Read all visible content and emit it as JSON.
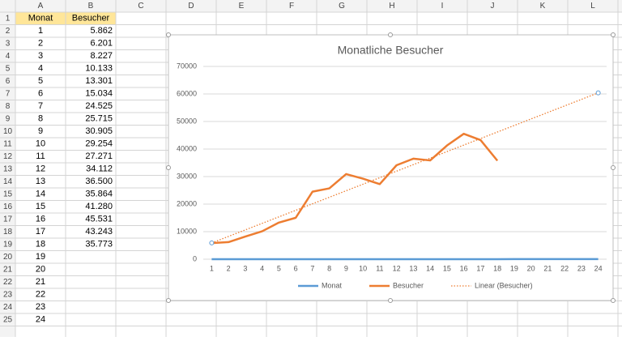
{
  "sheet": {
    "column_headers": [
      "A",
      "B",
      "C",
      "D",
      "E",
      "F",
      "G",
      "H",
      "I",
      "J",
      "K",
      "L"
    ],
    "row_headers": [
      1,
      2,
      3,
      4,
      5,
      6,
      7,
      8,
      9,
      10,
      11,
      12,
      13,
      14,
      15,
      16,
      17,
      18,
      19,
      20,
      21,
      22,
      23,
      24,
      25
    ],
    "rows": [
      [
        "Monat",
        "Besucher"
      ],
      [
        1,
        "5.862"
      ],
      [
        2,
        "6.201"
      ],
      [
        3,
        "8.227"
      ],
      [
        4,
        "10.133"
      ],
      [
        5,
        "13.301"
      ],
      [
        6,
        "15.034"
      ],
      [
        7,
        "24.525"
      ],
      [
        8,
        "25.715"
      ],
      [
        9,
        "30.905"
      ],
      [
        10,
        "29.254"
      ],
      [
        11,
        "27.271"
      ],
      [
        12,
        "34.112"
      ],
      [
        13,
        "36.500"
      ],
      [
        14,
        "35.864"
      ],
      [
        15,
        "41.280"
      ],
      [
        16,
        "45.531"
      ],
      [
        17,
        "43.243"
      ],
      [
        18,
        "35.773"
      ],
      [
        19
      ],
      [
        20
      ],
      [
        21
      ],
      [
        22
      ],
      [
        23
      ],
      [
        24
      ]
    ]
  },
  "chart_data": {
    "type": "line",
    "title": "Monatliche Besucher",
    "categories": [
      1,
      2,
      3,
      4,
      5,
      6,
      7,
      8,
      9,
      10,
      11,
      12,
      13,
      14,
      15,
      16,
      17,
      18,
      19,
      20,
      21,
      22,
      23,
      24
    ],
    "series": [
      {
        "name": "Monat",
        "color": "#5b9bd5",
        "values": [
          1,
          2,
          3,
          4,
          5,
          6,
          7,
          8,
          9,
          10,
          11,
          12,
          13,
          14,
          15,
          16,
          17,
          18,
          19,
          20,
          21,
          22,
          23,
          24
        ]
      },
      {
        "name": "Besucher",
        "color": "#ed7d31",
        "values": [
          5862,
          6201,
          8227,
          10133,
          13301,
          15034,
          24525,
          25715,
          30905,
          29254,
          27271,
          34112,
          36500,
          35864,
          41280,
          45531,
          43243,
          35773,
          null,
          null,
          null,
          null,
          null,
          null
        ]
      },
      {
        "name": "Linear (Besucher)",
        "color": "#ed7d31",
        "dash": "dotted",
        "values": [
          5901,
          8270,
          10639,
          13009,
          15378,
          17748,
          20117,
          22486,
          24856,
          27225,
          29595,
          31964,
          34333,
          36703,
          39072,
          41442,
          43811,
          46180,
          48550,
          50919,
          53289,
          55658,
          58027,
          60397
        ]
      }
    ],
    "ylim": [
      0,
      70000
    ],
    "yticks": [
      0,
      10000,
      20000,
      30000,
      40000,
      50000,
      60000,
      70000
    ],
    "grid": true,
    "legend": "bottom"
  }
}
